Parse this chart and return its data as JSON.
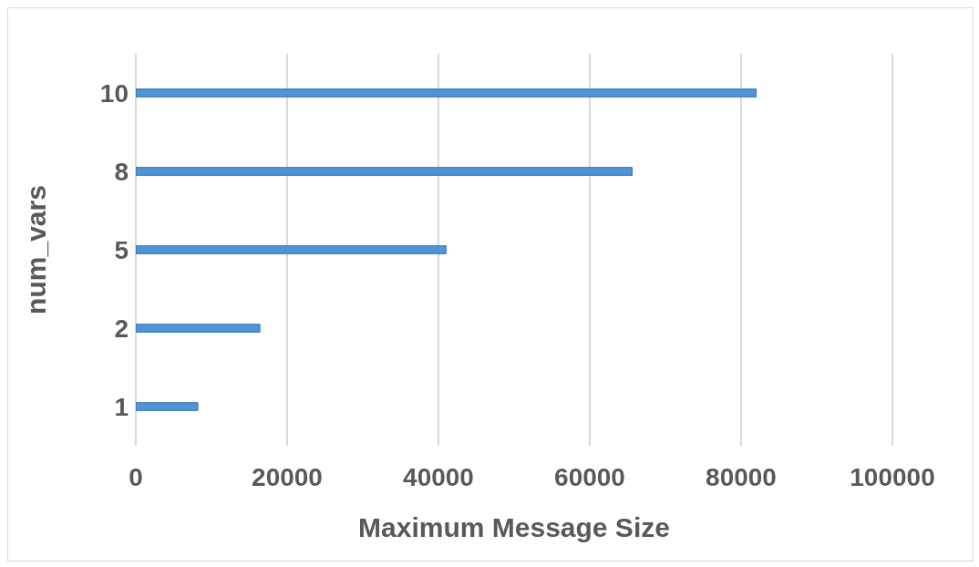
{
  "chart_data": {
    "type": "bar",
    "orientation": "horizontal",
    "categories": [
      "10",
      "8",
      "5",
      "2",
      "1"
    ],
    "values": [
      82000,
      65600,
      41000,
      16400,
      8200
    ],
    "color": "#4f94d8",
    "xlabel": "Maximum Message Size",
    "ylabel": "num_vars",
    "xlim": [
      0,
      100000
    ],
    "xticks": [
      0,
      20000,
      40000,
      60000,
      80000,
      100000
    ],
    "grid": "x"
  }
}
